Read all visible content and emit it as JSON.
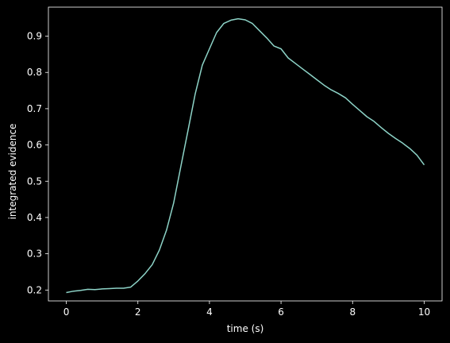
{
  "chart_data": {
    "type": "line",
    "title": "",
    "xlabel": "time (s)",
    "ylabel": "integrated evidence",
    "xlim": [
      -0.5,
      10.5
    ],
    "ylim": [
      0.17,
      0.98
    ],
    "xticks": [
      0,
      2,
      4,
      6,
      8,
      10
    ],
    "yticks": [
      0.2,
      0.3,
      0.4,
      0.5,
      0.6,
      0.7,
      0.8,
      0.9
    ],
    "xtick_labels": [
      "0",
      "2",
      "4",
      "6",
      "8",
      "10"
    ],
    "ytick_labels": [
      "0.2",
      "0.3",
      "0.4",
      "0.5",
      "0.6",
      "0.7",
      "0.8",
      "0.9"
    ],
    "grid": false,
    "legend": "none",
    "colors": {
      "background": "#000000",
      "axes": "#ffffff",
      "line": "#8dd3c7"
    },
    "series": [
      {
        "x": [
          0.0,
          0.2,
          0.4,
          0.6,
          0.8,
          1.0,
          1.2,
          1.4,
          1.6,
          1.8,
          2.0,
          2.2,
          2.4,
          2.6,
          2.8,
          3.0,
          3.2,
          3.4,
          3.6,
          3.8,
          4.0,
          4.2,
          4.4,
          4.6,
          4.8,
          5.0,
          5.2,
          5.4,
          5.6,
          5.8,
          6.0,
          6.2,
          6.4,
          6.6,
          6.8,
          7.0,
          7.2,
          7.4,
          7.6,
          7.8,
          8.0,
          8.2,
          8.4,
          8.6,
          8.8,
          9.0,
          9.2,
          9.4,
          9.6,
          9.8,
          10.0
        ],
        "y": [
          0.193,
          0.197,
          0.199,
          0.202,
          0.201,
          0.203,
          0.204,
          0.205,
          0.205,
          0.208,
          0.225,
          0.245,
          0.27,
          0.31,
          0.365,
          0.44,
          0.54,
          0.64,
          0.74,
          0.82,
          0.865,
          0.91,
          0.935,
          0.944,
          0.948,
          0.945,
          0.935,
          0.915,
          0.895,
          0.873,
          0.865,
          0.84,
          0.825,
          0.81,
          0.795,
          0.78,
          0.765,
          0.752,
          0.742,
          0.73,
          0.712,
          0.695,
          0.678,
          0.665,
          0.648,
          0.632,
          0.618,
          0.605,
          0.59,
          0.572,
          0.545
        ]
      }
    ]
  }
}
